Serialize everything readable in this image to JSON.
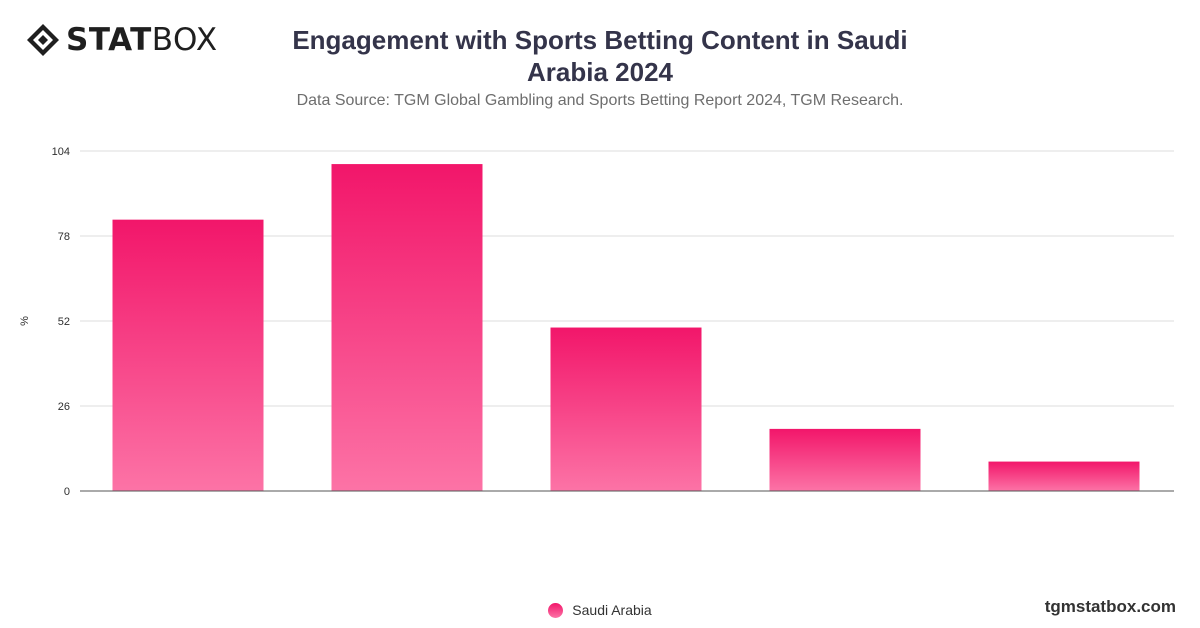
{
  "brand": {
    "logo_bold": "STAT",
    "logo_light": "BOX",
    "site": "tgmstatbox.com"
  },
  "header": {
    "title_line1": "Engagement with Sports Betting Content in Saudi",
    "title_line2": "Arabia 2024",
    "subtitle": "Data Source: TGM Global Gambling and Sports Betting Report 2024, TGM Research."
  },
  "colors": {
    "bar_top": "#f2166a",
    "bar_bottom": "#fc73a6",
    "grid": "#dddddd",
    "axis": "#555555"
  },
  "chart_data": {
    "type": "bar",
    "categories": [
      "",
      "",
      "",
      "",
      ""
    ],
    "series": [
      {
        "name": "Saudi Arabia",
        "values": [
          83,
          100,
          50,
          19,
          9
        ]
      }
    ],
    "ylabel": "%",
    "ylim": [
      0,
      104
    ],
    "yticks": [
      "0",
      "26",
      "52",
      "78",
      "104"
    ],
    "grid": true,
    "legend_position": "bottom-center"
  }
}
